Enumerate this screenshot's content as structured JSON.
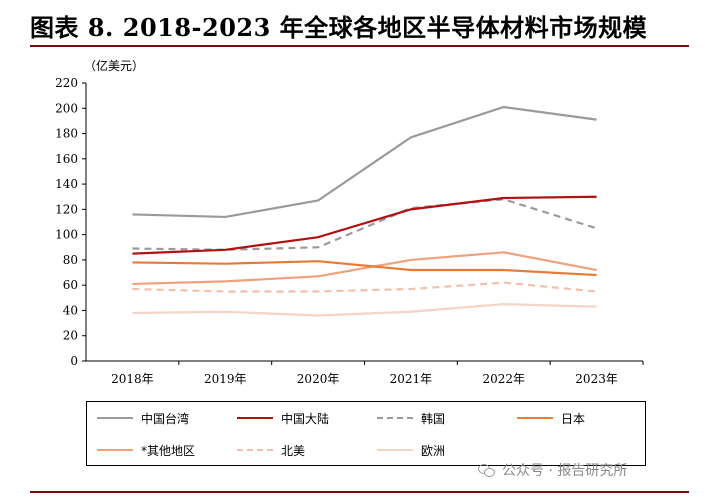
{
  "header": {
    "title": "图表 8. 2018-2023 年全球各地区半导体材料市场规模"
  },
  "watermark": {
    "text": "公众号 · 报告研究所"
  },
  "chart_data": {
    "type": "line",
    "unit_label": "（亿美元）",
    "categories": [
      "2018年",
      "2019年",
      "2020年",
      "2021年",
      "2022年",
      "2023年"
    ],
    "ylim": [
      0,
      220
    ],
    "yticks": [
      0,
      20,
      40,
      60,
      80,
      100,
      120,
      140,
      160,
      180,
      200,
      220
    ],
    "grid": false,
    "legend_position": "bottom",
    "series": [
      {
        "name": "中国台湾",
        "values": [
          116,
          114,
          127,
          177,
          201,
          191
        ],
        "color": "#9a9a9a",
        "dash": "solid"
      },
      {
        "name": "中国大陆",
        "values": [
          85,
          88,
          98,
          120,
          129,
          130
        ],
        "color": "#b01010",
        "dash": "solid"
      },
      {
        "name": "韩国",
        "values": [
          89,
          88,
          90,
          121,
          128,
          105
        ],
        "color": "#9a9a9a",
        "dash": "dashed"
      },
      {
        "name": "日本",
        "values": [
          78,
          77,
          79,
          72,
          72,
          68
        ],
        "color": "#e87a36",
        "dash": "solid"
      },
      {
        "name": "*其他地区",
        "values": [
          61,
          63,
          67,
          80,
          86,
          72
        ],
        "color": "#f0a07c",
        "dash": "solid"
      },
      {
        "name": "北美",
        "values": [
          57,
          55,
          55,
          57,
          62,
          55
        ],
        "color": "#f0c0ac",
        "dash": "dashed"
      },
      {
        "name": "欧洲",
        "values": [
          38,
          39,
          36,
          39,
          45,
          43
        ],
        "color": "#f5d4c8",
        "dash": "solid"
      }
    ]
  }
}
